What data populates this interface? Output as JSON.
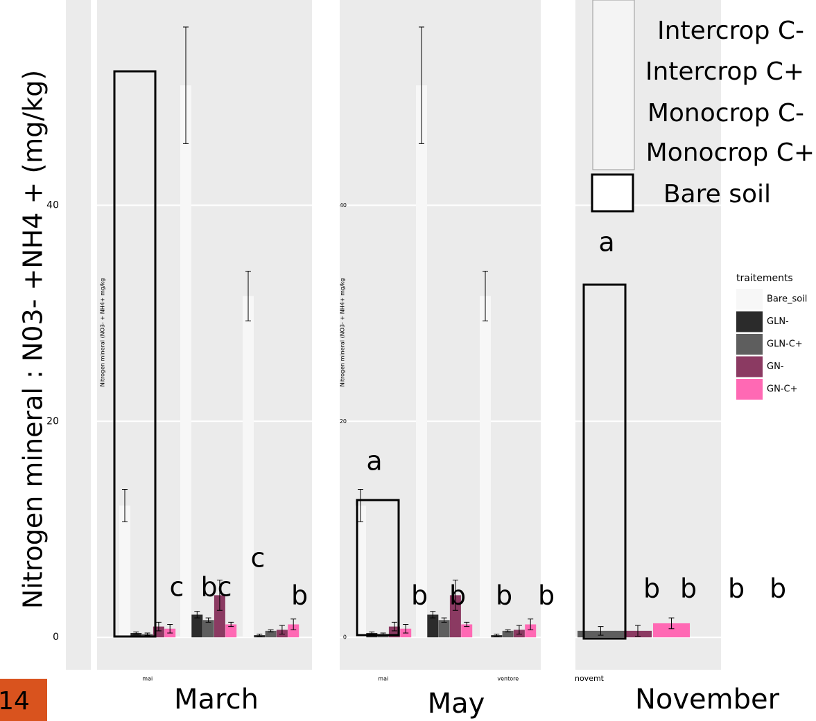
{
  "chart_data": [
    {
      "type": "bar",
      "categories": [
        "mai",
        null,
        null
      ],
      "series": [
        {
          "name": "Bare_soil",
          "color": "#f7f7f7",
          "values": [
            12.2,
            51.1,
            31.6
          ],
          "errors": [
            1.5,
            5.4,
            2.3
          ]
        },
        {
          "name": "GLN-",
          "color": "#2b2b2b",
          "values": [
            0.4,
            2.1,
            0.2
          ],
          "errors": [
            0.1,
            0.3,
            0.1
          ]
        },
        {
          "name": "GLN-C+",
          "color": "#5e5e5e",
          "values": [
            0.3,
            1.6,
            0.6
          ],
          "errors": [
            0.1,
            0.2,
            0.1
          ]
        },
        {
          "name": "GN-",
          "color": "#8b3a62",
          "values": [
            1.0,
            3.9,
            0.7
          ],
          "errors": [
            0.4,
            1.4,
            0.4
          ]
        },
        {
          "name": "GN-C+",
          "color": "#ff69b4",
          "values": [
            0.8,
            1.2,
            1.2
          ],
          "errors": [
            0.4,
            0.2,
            0.5
          ]
        }
      ],
      "ylim": [
        -3,
        59
      ],
      "yticks": [
        0,
        20,
        40
      ],
      "grid": true
    },
    {
      "type": "bar",
      "categories": [
        "mai",
        null,
        "ventore"
      ],
      "series": [
        {
          "name": "Bare_soil",
          "color": "#f7f7f7",
          "values": [
            12.2,
            51.1,
            31.6
          ],
          "errors": [
            1.5,
            5.4,
            2.3
          ]
        },
        {
          "name": "GLN-",
          "color": "#2b2b2b",
          "values": [
            0.4,
            2.1,
            0.2
          ],
          "errors": [
            0.1,
            0.3,
            0.1
          ]
        },
        {
          "name": "GLN-C+",
          "color": "#5e5e5e",
          "values": [
            0.3,
            1.6,
            0.6
          ],
          "errors": [
            0.1,
            0.2,
            0.1
          ]
        },
        {
          "name": "GN-",
          "color": "#8b3a62",
          "values": [
            1.0,
            3.9,
            0.7
          ],
          "errors": [
            0.4,
            1.4,
            0.4
          ]
        },
        {
          "name": "GN-C+",
          "color": "#ff69b4",
          "values": [
            0.8,
            1.2,
            1.2
          ],
          "errors": [
            0.4,
            0.2,
            0.5
          ]
        }
      ],
      "ylim": [
        -3,
        59
      ],
      "yticks": [
        0,
        20,
        40
      ],
      "grid": true
    },
    {
      "type": "bar",
      "categories": [
        "novemt"
      ],
      "series": [
        {
          "name": "GLN-C+",
          "color": "#5e5e5e",
          "values": [
            0.6
          ],
          "errors": [
            0.4
          ]
        },
        {
          "name": "GN-",
          "color": "#8b3a62",
          "values": [
            0.6
          ],
          "errors": [
            0.5
          ]
        },
        {
          "name": "GN-C+",
          "color": "#ff69b4",
          "values": [
            1.3
          ],
          "errors": [
            0.5
          ]
        }
      ],
      "ylim": [
        -3,
        59
      ],
      "yticks": [
        0,
        20,
        40
      ],
      "grid": true
    }
  ],
  "slide": {
    "y_label": "Nitrogen mineral : N03- +NH4 + (mg/kg)",
    "inner_y_label": "Nitrogen mineral (NO3- + NH4+ mg/kg",
    "months": [
      "March",
      "May",
      "November"
    ],
    "page_number": "14",
    "legend_overlay": [
      "Intercrop C-",
      "Intercrop C+",
      "Monocrop C-",
      "Monocrop C+",
      "Bare soil"
    ],
    "legend_title": "traitements",
    "letters": [
      "c",
      "bc",
      "c",
      "b",
      "a",
      "b",
      "b",
      "b",
      "b",
      "a",
      "b",
      "b",
      "b",
      "b"
    ]
  }
}
